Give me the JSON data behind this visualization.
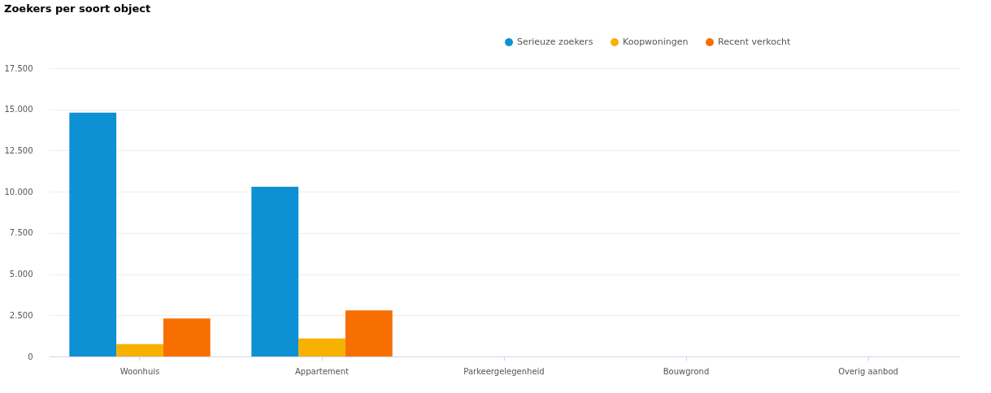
{
  "chart_data": {
    "type": "bar",
    "title": "Zoekers per soort object",
    "categories": [
      "Woonhuis",
      "Appartement",
      "Parkeergelegenheid",
      "Bouwgrond",
      "Overig aanbod"
    ],
    "series": [
      {
        "name": "Serieuze zoekers",
        "color": "#0d91d4",
        "values": [
          14800,
          10300,
          0,
          0,
          0
        ]
      },
      {
        "name": "Koopwoningen",
        "color": "#f7b100",
        "values": [
          750,
          1100,
          0,
          0,
          0
        ]
      },
      {
        "name": "Recent verkocht",
        "color": "#f76f00",
        "values": [
          2300,
          2800,
          0,
          0,
          0
        ]
      }
    ],
    "ylim": [
      0,
      17500
    ],
    "yticks": [
      0,
      {
        "value": 2500,
        "label": "2.500"
      },
      {
        "value": 5000,
        "label": "5.000"
      },
      {
        "value": 7500,
        "label": "7.500"
      },
      {
        "value": 10000,
        "label": "10.000"
      },
      {
        "value": 12500,
        "label": "12.500"
      },
      {
        "value": 15000,
        "label": "15.000"
      },
      {
        "value": 17500,
        "label": "17.500"
      }
    ],
    "grid": "y",
    "legend": "top right"
  }
}
